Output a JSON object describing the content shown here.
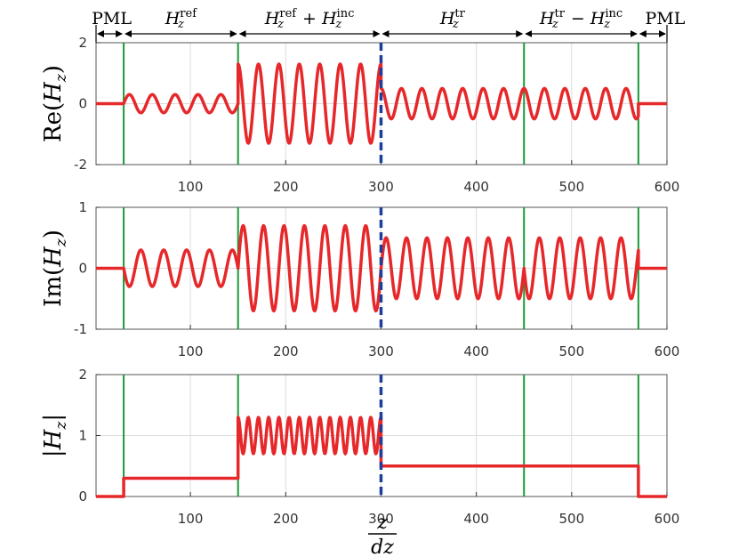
{
  "regions": [
    {
      "name": "PML",
      "label": "PML",
      "label_sup": "",
      "label_tail": ""
    },
    {
      "name": "reflected",
      "label": "H",
      "label_sup": "ref",
      "label_tail": ""
    },
    {
      "name": "total",
      "label": "H",
      "label_sup": "ref",
      "label_tail": "+ H",
      "label_tail_sup": "inc"
    },
    {
      "name": "transmitted",
      "label": "H",
      "label_sup": "tr",
      "label_tail": ""
    },
    {
      "name": "scattered",
      "label": "H",
      "label_sup": "tr",
      "label_tail": "− H",
      "label_tail_sup": "inc"
    },
    {
      "name": "PML-right",
      "label": "PML",
      "label_sup": "",
      "label_tail": ""
    }
  ],
  "region_sub": "z",
  "xlabel": {
    "numerator": "z",
    "denominator": "dz"
  },
  "colors": {
    "curve": "#e6282b",
    "boundary": "#1a9a3a",
    "interface": "#1d3f9c",
    "grid": "#dcdcdc",
    "axis": "#000000"
  },
  "chart_data": [
    {
      "type": "line",
      "ylabel": "Re(Hz)",
      "ylabel_display": "Re(H_z)",
      "xlim": [
        1,
        600
      ],
      "ylim": [
        -2,
        2
      ],
      "xticks": [
        100,
        200,
        300,
        400,
        500,
        600
      ],
      "yticks": [
        -2,
        0,
        2
      ],
      "ytick_labels": [
        "-2",
        "0",
        "2"
      ],
      "boundaries": [
        30,
        150,
        450,
        570
      ],
      "interface": 300,
      "series": [
        {
          "segments": [
            {
              "x": [
                1,
                30
              ],
              "kind": "flat",
              "value": 0
            },
            {
              "x": [
                30,
                150
              ],
              "kind": "sin",
              "amp": 0.3,
              "periods": 5,
              "phase": 0
            },
            {
              "x": [
                150,
                300
              ],
              "kind": "sin",
              "amp": 1.3,
              "periods": 7,
              "phase": 1.57
            },
            {
              "x": [
                300,
                450
              ],
              "kind": "sin",
              "amp": 0.5,
              "periods": 7,
              "phase": 1.57
            },
            {
              "x": [
                450,
                570
              ],
              "kind": "sin",
              "amp": 0.5,
              "periods": 5.6,
              "phase": 1.57
            },
            {
              "x": [
                570,
                600
              ],
              "kind": "flat",
              "value": 0
            }
          ]
        }
      ]
    },
    {
      "type": "line",
      "ylabel": "Im(Hz)",
      "ylabel_display": "Im(H_z)",
      "xlim": [
        1,
        600
      ],
      "ylim": [
        -1,
        1
      ],
      "xticks": [
        100,
        200,
        300,
        400,
        500,
        600
      ],
      "yticks": [
        -1,
        0,
        1
      ],
      "ytick_labels": [
        "-1",
        "0",
        "1"
      ],
      "boundaries": [
        30,
        150,
        450,
        570
      ],
      "interface": 300,
      "series": [
        {
          "segments": [
            {
              "x": [
                1,
                30
              ],
              "kind": "flat",
              "value": 0
            },
            {
              "x": [
                30,
                150
              ],
              "kind": "sin",
              "amp": 0.3,
              "periods": 5,
              "phase": 3.14
            },
            {
              "x": [
                150,
                300
              ],
              "kind": "sin",
              "amp": 0.7,
              "periods": 7,
              "phase": 0
            },
            {
              "x": [
                300,
                450
              ],
              "kind": "sin",
              "amp": 0.5,
              "periods": 7,
              "phase": 0
            },
            {
              "x": [
                450,
                570
              ],
              "kind": "sin",
              "amp": 0.5,
              "periods": 5.6,
              "phase": 3.14
            },
            {
              "x": [
                570,
                600
              ],
              "kind": "flat",
              "value": 0
            }
          ]
        }
      ]
    },
    {
      "type": "line",
      "ylabel": "|Hz|",
      "ylabel_display": "|H_z|",
      "xlim": [
        1,
        600
      ],
      "ylim": [
        0,
        2
      ],
      "xticks": [
        100,
        200,
        300,
        400,
        500,
        600
      ],
      "yticks": [
        0,
        1,
        2
      ],
      "ytick_labels": [
        "0",
        "1",
        "2"
      ],
      "boundaries": [
        30,
        150,
        450,
        570
      ],
      "interface": 300,
      "series": [
        {
          "segments": [
            {
              "x": [
                1,
                30
              ],
              "kind": "flat",
              "value": 0
            },
            {
              "x": [
                30,
                150
              ],
              "kind": "flat",
              "value": 0.3
            },
            {
              "x": [
                150,
                300
              ],
              "kind": "abs",
              "base": 1.0,
              "amp": 0.3,
              "periods": 14,
              "phase": 0
            },
            {
              "x": [
                300,
                450
              ],
              "kind": "flat",
              "value": 0.5
            },
            {
              "x": [
                450,
                570
              ],
              "kind": "flat",
              "value": 0.5
            },
            {
              "x": [
                570,
                600
              ],
              "kind": "flat",
              "value": 0
            }
          ]
        }
      ]
    }
  ]
}
